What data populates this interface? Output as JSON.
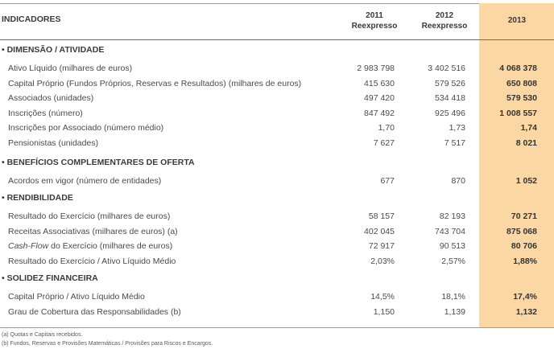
{
  "header": {
    "indicators": "INDICADORES",
    "col2011": [
      "2011",
      "Reexpresso"
    ],
    "col2012": [
      "2012",
      "Reexpresso"
    ],
    "col2013": "2013"
  },
  "sections": [
    {
      "title": "• DIMENSÃO / ATIVIDADE",
      "rows": [
        {
          "label": "Ativo Líquido (milhares de euros)",
          "v2011": "2 983 798",
          "v2012": "3 402 516",
          "v2013": "4 068 378"
        },
        {
          "label": "Capital Próprio (Fundos Próprios, Reservas e Resultados) (milhares de euros)",
          "v2011": "415 630",
          "v2012": "579 526",
          "v2013": "650 808"
        },
        {
          "label": "Associados (unidades)",
          "v2011": "497 420",
          "v2012": "534 418",
          "v2013": "579 530"
        },
        {
          "label": "Inscrições (número)",
          "v2011": "847 492",
          "v2012": "925 496",
          "v2013": "1 008 557"
        },
        {
          "label": "Inscrições por Associado (número médio)",
          "v2011": "1,70",
          "v2012": "1,73",
          "v2013": "1,74"
        },
        {
          "label": "Pensionistas (unidades)",
          "v2011": "7 627",
          "v2012": "7 517",
          "v2013": "8 021"
        }
      ]
    },
    {
      "title": "• BENEFÍCIOS COMPLEMENTARES DE OFERTA",
      "rows": [
        {
          "label": "Acordos em vigor (número de entidades)",
          "v2011": "677",
          "v2012": "870",
          "v2013": "1 052"
        }
      ]
    },
    {
      "title": "• RENDIBILIDADE",
      "rows": [
        {
          "label": "Resultado do Exercício (milhares de euros)",
          "v2011": "58 157",
          "v2012": "82 193",
          "v2013": "70 271"
        },
        {
          "label": "Receitas Associativas (milhares de euros) (a)",
          "v2011": "402 045",
          "v2012": "743 704",
          "v2013": "875 068"
        },
        {
          "label_italic": "Cash-Flow",
          "label": " do Exercício (milhares de euros)",
          "v2011": "72 917",
          "v2012": "90 513",
          "v2013": "80 706"
        },
        {
          "label": "Resultado do Exercício / Ativo Líquido Médio",
          "v2011": "2,03%",
          "v2012": "2,57%",
          "v2013": "1,88%"
        }
      ]
    },
    {
      "title": "• SOLIDEZ FINANCEIRA",
      "rows": [
        {
          "label": "Capital Próprio / Ativo Líquido Médio",
          "v2011": "14,5%",
          "v2012": "18,1%",
          "v2013": "17,4%"
        },
        {
          "label": "Grau de Cobertura das Responsabilidades (b)",
          "v2011": "1,150",
          "v2012": "1,139",
          "v2013": "1,132"
        }
      ]
    }
  ],
  "footnotes": [
    "(a) Quotas e Capitais recebidos.",
    "(b) Fundos, Reservas e Provisões Matemáticas / Provisões para Riscos e Encargos."
  ]
}
